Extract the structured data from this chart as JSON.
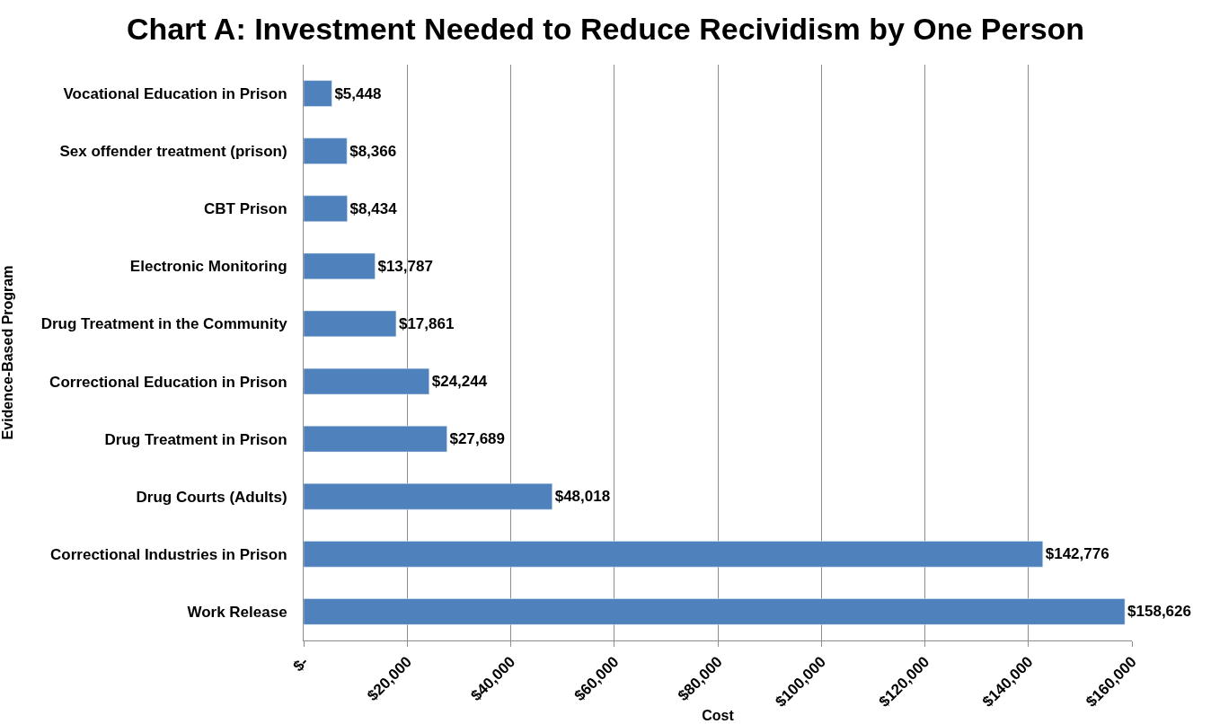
{
  "chart_data": {
    "type": "bar",
    "orientation": "horizontal",
    "title": "Chart A: Investment Needed to Reduce Recividism by One Person",
    "xlabel": "Cost",
    "ylabel": "Evidence-Based Program",
    "categories": [
      "Vocational Education in Prison",
      "Sex offender treatment (prison)",
      "CBT Prison",
      "Electronic Monitoring",
      "Drug Treatment in the Community",
      "Correctional Education in Prison",
      "Drug Treatment in Prison",
      "Drug Courts (Adults)",
      "Correctional Industries in Prison",
      "Work Release"
    ],
    "values": [
      5448,
      8366,
      8434,
      13787,
      17861,
      24244,
      27689,
      48018,
      142776,
      158626
    ],
    "value_labels": [
      "$5,448",
      "$8,366",
      "$8,434",
      "$13,787",
      "$17,861",
      "$24,244",
      "$27,689",
      "$48,018",
      "$142,776",
      "$158,626"
    ],
    "color": "#4f81bd",
    "xlim": [
      0,
      160000
    ],
    "xticks": [
      {
        "value": 0,
        "label": "$-"
      },
      {
        "value": 20000,
        "label": "$20,000"
      },
      {
        "value": 40000,
        "label": "$40,000"
      },
      {
        "value": 60000,
        "label": "$60,000"
      },
      {
        "value": 80000,
        "label": "$80,000"
      },
      {
        "value": 100000,
        "label": "$100,000"
      },
      {
        "value": 120000,
        "label": "$120,000"
      },
      {
        "value": 140000,
        "label": "$140,000"
      },
      {
        "value": 160000,
        "label": "$160,000"
      }
    ],
    "grid": "x",
    "legend": false
  }
}
